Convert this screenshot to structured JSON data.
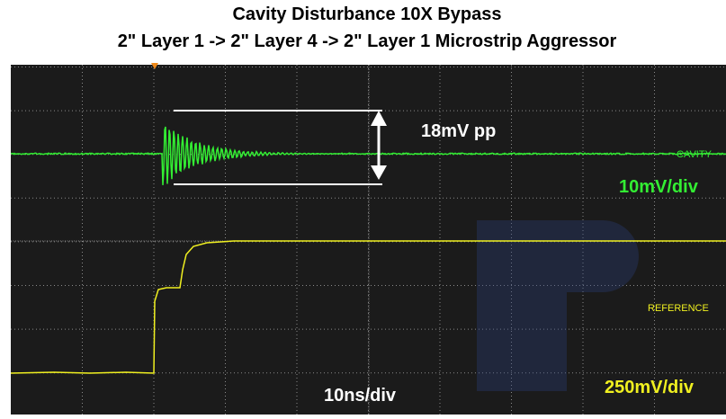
{
  "header": {
    "title": "Cavity Disturbance  10X Bypass",
    "subtitle": "2\" Layer 1 -> 2\" Layer 4 -> 2\" Layer 1 Microstrip Aggressor"
  },
  "annotations": {
    "amplitude": "18mV pp",
    "timebase": "10ns/div"
  },
  "channels": [
    {
      "name": "CAVITY",
      "scale": "10mV/div"
    },
    {
      "name": "REFERENCE",
      "scale": "250mV/div"
    }
  ]
}
